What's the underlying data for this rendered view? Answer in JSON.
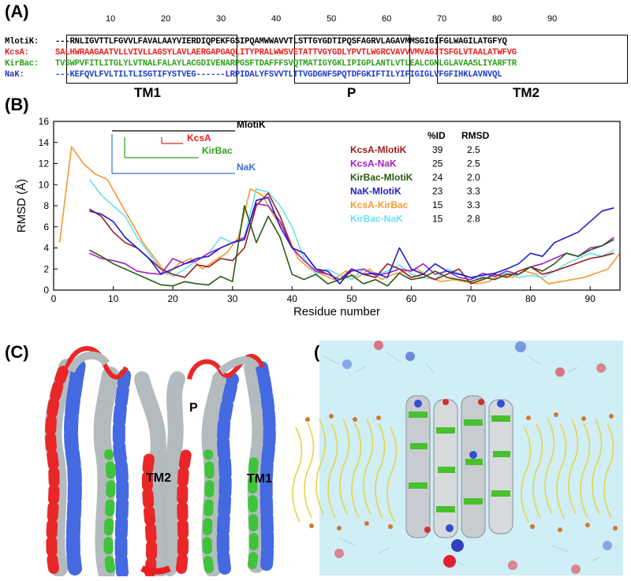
{
  "panels": {
    "a": "(A)",
    "b": "(B)",
    "c": "(C)",
    "d": "(D)"
  },
  "alignment": {
    "ticks": [
      "10",
      "20",
      "30",
      "40",
      "50",
      "60",
      "70",
      "80",
      "90"
    ],
    "rows": [
      {
        "name": "MlotiK:",
        "seq": "---RNLIGVTTLFGVVLFAVALAAYVIERDIQPEKFGSIPQAMWWAVVTLSTTGYGDTIPQSFAGRVLAGAVMMSGIGIFGLWAGILATGFYQ",
        "color": "#000000"
      },
      {
        "name": "KcsA:",
        "seq": "SALHWRAAGAATVLLVIVLLAGSYLAVLAERGAPGAQLITYPRALWWSVETATTVGYGDLYPVTLWGRCVAVVVMVAGITSFGLVTAALATWFVG",
        "color": "#e8201c"
      },
      {
        "name": "KirBac:",
        "seq": "TVSWPVFITLITGLYLVTNALFALAYLACGDIVENARPGSFTDAFFFSVQTMATIGYGKLIPIGPLANTLVTLEALCGMLGLAVAASLIYARFTR",
        "color": "#2ea01c"
      },
      {
        "name": "NaK:",
        "seq": "---KEFQVLFVLTILTLISGTIFYSTVEG------LRPIDALYFSVVTLTTVGDGNFSPQTDFGKIFTILYIFIGIGLVFGFIHKLAVNVQL",
        "color": "#1c3ccc"
      }
    ],
    "regions": [
      "TM1",
      "P",
      "TM2"
    ]
  },
  "chart_data": {
    "type": "line",
    "xlabel": "Residue number",
    "ylabel": "RMSD (Å)",
    "xlim": [
      0,
      95
    ],
    "ylim": [
      0,
      16
    ],
    "xticks": [
      0,
      10,
      20,
      30,
      40,
      50,
      60,
      70,
      80,
      90
    ],
    "yticks": [
      0,
      2,
      4,
      6,
      8,
      10,
      12,
      14,
      16
    ],
    "tree": {
      "root": "MlotiK",
      "leaves": [
        "KcsA",
        "KirBac",
        "NaK"
      ],
      "colors": {
        "MlotiK": "#000000",
        "KcsA": "#e8201c",
        "KirBac": "#2ea01c",
        "NaK": "#3a6ee0"
      }
    },
    "table": {
      "headers": [
        "%ID",
        "RMSD"
      ],
      "rows": [
        {
          "name": "KcsA-MlotiK",
          "id": "39",
          "rmsd": "2.5",
          "color": "#9b1c1c"
        },
        {
          "name": "KcsA-NaK",
          "id": "25",
          "rmsd": "2.5",
          "color": "#a020c0"
        },
        {
          "name": "KirBac-MlotiK",
          "id": "24",
          "rmsd": "2.0",
          "color": "#2a5a10"
        },
        {
          "name": "NaK-MlotiK",
          "id": "23",
          "rmsd": "3.3",
          "color": "#1e1ec8"
        },
        {
          "name": "KcsA-KirBac",
          "id": "15",
          "rmsd": "3.3",
          "color": "#f59a30"
        },
        {
          "name": "KirBac-NaK",
          "id": "15",
          "rmsd": "2.8",
          "color": "#6ae0f0"
        }
      ]
    },
    "series": [
      {
        "name": "KcsA-KirBac",
        "color": "#f59a30",
        "x": [
          1,
          3,
          5,
          7,
          9,
          11,
          13,
          15,
          17,
          19,
          21,
          23,
          25,
          27,
          29,
          31,
          33,
          35,
          37,
          39,
          41,
          43,
          45,
          47,
          49,
          51,
          53,
          55,
          57,
          59,
          61,
          63,
          65,
          67,
          69,
          71,
          73,
          75,
          77,
          79,
          81,
          83,
          85,
          87,
          89,
          91,
          93,
          95
        ],
        "y": [
          4.5,
          13.6,
          12,
          11,
          10.5,
          8.5,
          6.5,
          4.5,
          3,
          1.5,
          2.5,
          3,
          2,
          2.8,
          3.5,
          5,
          9.6,
          9,
          7,
          5.5,
          3,
          2,
          1.5,
          1,
          1.8,
          1.2,
          2,
          1,
          1.5,
          1.8,
          2,
          1.2,
          0.8,
          1,
          0.8,
          0.6,
          0.8,
          1.5,
          1.2,
          1.8,
          1.5,
          0.6,
          0.8,
          1,
          1.2,
          1.6,
          2,
          3.5
        ]
      },
      {
        "name": "KirBac-NaK",
        "color": "#6ae0f0",
        "x": [
          6,
          8,
          10,
          12,
          14,
          16,
          18,
          20,
          22,
          24,
          26,
          28,
          30,
          32,
          34,
          36,
          38,
          40,
          42,
          44,
          46,
          48,
          50,
          52,
          54,
          56,
          58,
          60,
          62,
          64,
          66,
          68,
          70,
          72,
          74,
          76,
          78,
          80,
          82,
          84,
          86,
          88,
          90,
          92,
          94
        ],
        "y": [
          10.5,
          9,
          8,
          7,
          5,
          3.5,
          2,
          1.3,
          2,
          2.8,
          3.5,
          5,
          4.5,
          5,
          9.6,
          9.3,
          8,
          6,
          3,
          1.5,
          2,
          1.4,
          1,
          2,
          1.5,
          1.8,
          2.4,
          1.5,
          1.2,
          1,
          2,
          1.6,
          1.2,
          1,
          1.3,
          1.6,
          1.2,
          1.4,
          1.2,
          1.8,
          2.5,
          3,
          3.5,
          3.2,
          3.8
        ]
      },
      {
        "name": "KcsA-MlotiK",
        "color": "#9b1c1c",
        "x": [
          6,
          8,
          10,
          12,
          14,
          16,
          18,
          20,
          22,
          24,
          26,
          28,
          30,
          32,
          34,
          36,
          38,
          40,
          42,
          44,
          46,
          48,
          50,
          52,
          54,
          56,
          58,
          60,
          62,
          64,
          66,
          68,
          70,
          72,
          74,
          76,
          78,
          80,
          82,
          84,
          86,
          88,
          90,
          92,
          94
        ],
        "y": [
          7.7,
          7,
          5.5,
          4.5,
          4,
          3,
          2,
          1.5,
          1.2,
          2.4,
          2.2,
          3,
          2.8,
          4,
          8,
          9.2,
          7,
          4,
          3.5,
          2,
          1.5,
          1,
          2,
          1.5,
          1.2,
          2.5,
          2,
          1.2,
          1.5,
          1,
          1.5,
          2,
          0.6,
          1,
          1.5,
          1.2,
          1.8,
          2.2,
          1.5,
          1.8,
          2.2,
          2.6,
          3,
          3.2,
          3.5
        ]
      },
      {
        "name": "KcsA-NaK",
        "color": "#a020c0",
        "x": [
          6,
          8,
          10,
          12,
          14,
          16,
          18,
          20,
          22,
          24,
          26,
          28,
          30,
          32,
          34,
          36,
          38,
          40,
          42,
          44,
          46,
          48,
          50,
          52,
          54,
          56,
          58,
          60,
          62,
          64,
          66,
          68,
          70,
          72,
          74,
          76,
          78,
          80,
          82,
          84,
          86,
          88,
          90,
          92,
          94
        ],
        "y": [
          3.5,
          3,
          2.8,
          2.5,
          1.8,
          1.6,
          1.5,
          3,
          2.5,
          2.8,
          3.5,
          4,
          4.5,
          5,
          8.2,
          8,
          6.5,
          4,
          2.8,
          1.8,
          1.5,
          1,
          1.8,
          2,
          1.4,
          1.6,
          2,
          1.8,
          2.5,
          1.5,
          1.8,
          1.2,
          1,
          1.6,
          1.3,
          1.8,
          1.5,
          2.2,
          2.5,
          3,
          3.5,
          3.2,
          4,
          4.2,
          5
        ]
      },
      {
        "name": "KirBac-MlotiK",
        "color": "#2a5a10",
        "x": [
          6,
          8,
          10,
          12,
          14,
          16,
          18,
          20,
          22,
          24,
          26,
          28,
          30,
          32,
          34,
          36,
          38,
          40,
          42,
          44,
          46,
          48,
          50,
          52,
          54,
          56,
          58,
          60,
          62,
          64,
          66,
          68,
          70,
          72,
          74,
          76,
          78,
          80,
          82,
          84,
          86,
          88,
          90,
          92,
          94
        ],
        "y": [
          3.8,
          3.2,
          2.5,
          2,
          1.5,
          1,
          0.5,
          0.4,
          0.8,
          0.6,
          0.5,
          1.3,
          0.8,
          8,
          4.5,
          7,
          5,
          1.5,
          1,
          1.5,
          0.6,
          1,
          1.4,
          0.6,
          1,
          0.4,
          1.6,
          1,
          1.2,
          1.8,
          1.2,
          1,
          0.8,
          1.2,
          1,
          1.5,
          1.5,
          2.2,
          1.8,
          2.5,
          3.5,
          3.2,
          3.8,
          4.2,
          4.8
        ]
      },
      {
        "name": "NaK-MlotiK",
        "color": "#1e1ec8",
        "x": [
          6,
          8,
          10,
          12,
          14,
          16,
          18,
          20,
          22,
          24,
          26,
          28,
          30,
          32,
          34,
          36,
          38,
          40,
          42,
          44,
          46,
          48,
          50,
          52,
          54,
          56,
          58,
          60,
          62,
          64,
          66,
          68,
          70,
          72,
          74,
          76,
          78,
          80,
          82,
          84,
          86,
          88,
          90,
          92,
          94
        ],
        "y": [
          7.5,
          7.2,
          6.5,
          5,
          4,
          3,
          1.5,
          2,
          2.5,
          3,
          3.2,
          4,
          4.5,
          4.8,
          8.5,
          8.8,
          6,
          4,
          3.5,
          2,
          1.8,
          0.6,
          2,
          1.5,
          1.6,
          1.2,
          4,
          2,
          1.5,
          2.5,
          1.8,
          1.5,
          1.2,
          1.4,
          1.6,
          2,
          2.5,
          3.5,
          3.2,
          4.5,
          5,
          5.5,
          6.5,
          7.5,
          7.8
        ]
      }
    ]
  },
  "structures": {
    "c_labels": {
      "p": "P",
      "tm2": "TM2",
      "tm1": "TM1"
    }
  }
}
